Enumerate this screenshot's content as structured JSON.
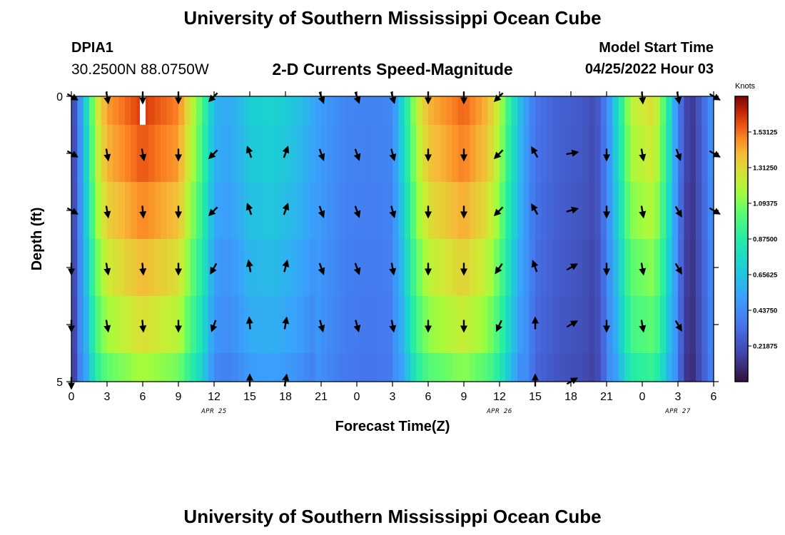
{
  "page": {
    "title_top": "University of Southern Mississippi Ocean Cube",
    "title_bottom": "University of Southern Mississippi Ocean Cube",
    "station_id": "DPIA1",
    "station_coords": "30.2500N  88.0750W",
    "chart_title": "2-D Currents Speed-Magnitude",
    "model_start_label": "Model Start Time",
    "model_start_value": "04/25/2022 Hour 03"
  },
  "chart_data": {
    "type": "heatmap",
    "title": "2-D Currents Speed-Magnitude",
    "xlabel": "Forecast Time(Z)",
    "ylabel": "Depth (ft)",
    "colorbar_label": "Knots",
    "colorbar_ticks": [
      "1.53125",
      "1.31250",
      "1.09375",
      "0.87500",
      "0.65625",
      "0.43750",
      "0.21875"
    ],
    "colorbar_tick_values": [
      1.53125,
      1.3125,
      1.09375,
      0.875,
      0.65625,
      0.4375,
      0.21875
    ],
    "color_range": [
      0,
      1.75
    ],
    "x_range_hours": [
      0,
      54
    ],
    "x_ticks_hours": [
      0,
      3,
      6,
      9,
      12,
      15,
      18,
      21,
      24,
      27,
      30,
      33,
      36,
      39,
      42,
      45,
      48,
      51,
      54
    ],
    "x_tick_labels": [
      "0",
      "3",
      "6",
      "9",
      "12",
      "15",
      "18",
      "21",
      "0",
      "3",
      "6",
      "9",
      "12",
      "15",
      "18",
      "21",
      "0",
      "3",
      "6"
    ],
    "date_labels": [
      {
        "text": "APR 25",
        "hour": 12
      },
      {
        "text": "APR 26",
        "hour": 36
      },
      {
        "text": "APR 27",
        "hour": 51
      }
    ],
    "y_range_ft": [
      0,
      5
    ],
    "y_tick_labels": [
      {
        "value": 0,
        "label": "0"
      },
      {
        "value": 5,
        "label": "5"
      }
    ],
    "depth_levels": 5,
    "speed_keyframes": [
      [
        0,
        0.1
      ],
      [
        1,
        0.6
      ],
      [
        2,
        1.2
      ],
      [
        3,
        1.45
      ],
      [
        6,
        1.62
      ],
      [
        9,
        1.5
      ],
      [
        10,
        1.25
      ],
      [
        11,
        1.0
      ],
      [
        12,
        0.6
      ],
      [
        13,
        0.55
      ],
      [
        14,
        0.6
      ],
      [
        15,
        0.7
      ],
      [
        17,
        0.72
      ],
      [
        19,
        0.65
      ],
      [
        21,
        0.5
      ],
      [
        23,
        0.42
      ],
      [
        25,
        0.4
      ],
      [
        27,
        0.42
      ],
      [
        28,
        0.8
      ],
      [
        29,
        1.2
      ],
      [
        30,
        1.4
      ],
      [
        33,
        1.55
      ],
      [
        35,
        1.4
      ],
      [
        36,
        1.2
      ],
      [
        37,
        0.85
      ],
      [
        38,
        0.55
      ],
      [
        39,
        0.35
      ],
      [
        41,
        0.28
      ],
      [
        43,
        0.25
      ],
      [
        44,
        0.2
      ],
      [
        45,
        0.4
      ],
      [
        46,
        0.8
      ],
      [
        47,
        1.2
      ],
      [
        49,
        1.3
      ],
      [
        50,
        0.95
      ],
      [
        51,
        0.4
      ],
      [
        52,
        0.1
      ],
      [
        53,
        0.28
      ],
      [
        54,
        0.5
      ]
    ],
    "depth_scale": [
      1.0,
      0.97,
      0.92,
      0.86,
      0.8,
      0.72
    ],
    "missing_cells": [
      {
        "hour": 6,
        "depth_row": 0
      }
    ],
    "arrows": [
      {
        "hour": 0,
        "dirs": [
          120,
          120,
          120,
          180,
          180,
          180
        ]
      },
      {
        "hour": 3,
        "dirs": [
          170,
          170,
          170,
          170,
          170,
          null
        ]
      },
      {
        "hour": 6,
        "dirs": [
          180,
          170,
          175,
          175,
          175,
          null
        ]
      },
      {
        "hour": 9,
        "dirs": [
          180,
          180,
          180,
          180,
          180,
          null
        ]
      },
      {
        "hour": 12,
        "dirs": [
          225,
          225,
          225,
          210,
          200,
          null
        ]
      },
      {
        "hour": 15,
        "dirs": [
          null,
          340,
          340,
          350,
          355,
          0
        ]
      },
      {
        "hour": 18,
        "dirs": [
          null,
          20,
          20,
          15,
          10,
          10
        ]
      },
      {
        "hour": 21,
        "dirs": [
          160,
          160,
          160,
          160,
          165,
          null
        ]
      },
      {
        "hour": 24,
        "dirs": [
          160,
          160,
          160,
          160,
          165,
          null
        ]
      },
      {
        "hour": 27,
        "dirs": [
          165,
          165,
          165,
          170,
          170,
          null
        ]
      },
      {
        "hour": 30,
        "dirs": [
          180,
          180,
          180,
          180,
          180,
          null
        ]
      },
      {
        "hour": 33,
        "dirs": [
          180,
          180,
          180,
          180,
          180,
          null
        ]
      },
      {
        "hour": 36,
        "dirs": [
          225,
          225,
          225,
          215,
          205,
          null
        ]
      },
      {
        "hour": 39,
        "dirs": [
          null,
          330,
          330,
          340,
          0,
          0
        ]
      },
      {
        "hour": 42,
        "dirs": [
          null,
          80,
          75,
          60,
          60,
          60
        ]
      },
      {
        "hour": 45,
        "dirs": [
          null,
          180,
          180,
          180,
          180,
          null
        ]
      },
      {
        "hour": 48,
        "dirs": [
          175,
          170,
          170,
          170,
          170,
          null
        ]
      },
      {
        "hour": 51,
        "dirs": [
          170,
          160,
          150,
          150,
          150,
          null
        ]
      },
      {
        "hour": 54,
        "dirs": [
          120,
          120,
          120,
          null,
          null,
          null
        ]
      }
    ]
  }
}
